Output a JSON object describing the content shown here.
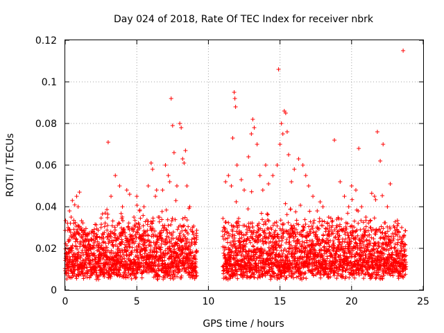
{
  "chart_data": {
    "type": "scatter",
    "title": "Day 024 of 2018, Rate Of TEC Index for receiver nbrk",
    "xlabel": "GPS time / hours",
    "ylabel": "ROTI / TECUs",
    "xlim": [
      0,
      25
    ],
    "ylim": [
      0,
      0.12
    ],
    "xticks": [
      0,
      5,
      10,
      15,
      20,
      25
    ],
    "yticks": [
      0,
      0.02,
      0.04,
      0.06,
      0.08,
      0.1,
      0.12
    ],
    "xtick_labels": [
      "0",
      "5",
      "10",
      "15",
      "20",
      "25"
    ],
    "ytick_labels": [
      "0",
      "0.02",
      "0.04",
      "0.06",
      "0.08",
      "0.1",
      "0.12"
    ],
    "grid": true,
    "marker": "+",
    "color": "#ff0000",
    "series": [
      {
        "name": "ROTI",
        "points": [
          [
            0.1,
            0.012
          ],
          [
            0.2,
            0.03
          ],
          [
            0.3,
            0.038
          ],
          [
            0.5,
            0.043
          ],
          [
            0.6,
            0.032
          ],
          [
            0.8,
            0.045
          ],
          [
            0.9,
            0.04
          ],
          [
            1.0,
            0.047
          ],
          [
            1.2,
            0.025
          ],
          [
            1.5,
            0.018
          ],
          [
            2.0,
            0.02
          ],
          [
            2.5,
            0.03
          ],
          [
            2.8,
            0.037
          ],
          [
            3.0,
            0.071
          ],
          [
            3.2,
            0.045
          ],
          [
            3.5,
            0.055
          ],
          [
            3.8,
            0.05
          ],
          [
            4.0,
            0.04
          ],
          [
            4.3,
            0.048
          ],
          [
            4.5,
            0.046
          ],
          [
            4.8,
            0.035
          ],
          [
            5.0,
            0.045
          ],
          [
            5.2,
            0.038
          ],
          [
            5.5,
            0.04
          ],
          [
            5.8,
            0.05
          ],
          [
            6.0,
            0.061
          ],
          [
            6.1,
            0.058
          ],
          [
            6.3,
            0.045
          ],
          [
            6.5,
            0.035
          ],
          [
            6.8,
            0.048
          ],
          [
            7.0,
            0.06
          ],
          [
            7.2,
            0.055
          ],
          [
            7.3,
            0.052
          ],
          [
            7.4,
            0.092
          ],
          [
            7.5,
            0.079
          ],
          [
            7.6,
            0.066
          ],
          [
            7.8,
            0.05
          ],
          [
            8.0,
            0.08
          ],
          [
            8.1,
            0.078
          ],
          [
            8.2,
            0.063
          ],
          [
            8.3,
            0.061
          ],
          [
            8.4,
            0.067
          ],
          [
            8.5,
            0.05
          ],
          [
            8.7,
            0.04
          ],
          [
            8.9,
            0.03
          ],
          [
            9.0,
            0.025
          ],
          [
            11.2,
            0.052
          ],
          [
            11.4,
            0.055
          ],
          [
            11.6,
            0.05
          ],
          [
            11.7,
            0.073
          ],
          [
            11.8,
            0.095
          ],
          [
            11.85,
            0.092
          ],
          [
            11.9,
            0.088
          ],
          [
            12.0,
            0.06
          ],
          [
            12.3,
            0.053
          ],
          [
            12.5,
            0.048
          ],
          [
            12.8,
            0.064
          ],
          [
            13.0,
            0.075
          ],
          [
            13.1,
            0.082
          ],
          [
            13.2,
            0.078
          ],
          [
            13.4,
            0.07
          ],
          [
            13.6,
            0.055
          ],
          [
            13.8,
            0.048
          ],
          [
            14.0,
            0.06
          ],
          [
            14.2,
            0.051
          ],
          [
            14.5,
            0.055
          ],
          [
            14.8,
            0.06
          ],
          [
            14.9,
            0.106
          ],
          [
            15.0,
            0.07
          ],
          [
            15.1,
            0.08
          ],
          [
            15.2,
            0.075
          ],
          [
            15.3,
            0.086
          ],
          [
            15.4,
            0.085
          ],
          [
            15.5,
            0.076
          ],
          [
            15.6,
            0.065
          ],
          [
            15.8,
            0.052
          ],
          [
            16.0,
            0.058
          ],
          [
            16.3,
            0.063
          ],
          [
            16.6,
            0.06
          ],
          [
            16.8,
            0.055
          ],
          [
            17.0,
            0.05
          ],
          [
            17.3,
            0.045
          ],
          [
            17.6,
            0.038
          ],
          [
            18.0,
            0.04
          ],
          [
            18.4,
            0.035
          ],
          [
            18.8,
            0.072
          ],
          [
            19.2,
            0.052
          ],
          [
            19.5,
            0.045
          ],
          [
            19.8,
            0.04
          ],
          [
            20.0,
            0.05
          ],
          [
            20.3,
            0.048
          ],
          [
            20.5,
            0.068
          ],
          [
            20.7,
            0.04
          ],
          [
            21.0,
            0.035
          ],
          [
            21.3,
            0.03
          ],
          [
            21.6,
            0.045
          ],
          [
            21.8,
            0.076
          ],
          [
            22.0,
            0.062
          ],
          [
            22.2,
            0.07
          ],
          [
            22.5,
            0.04
          ],
          [
            22.7,
            0.051
          ],
          [
            23.0,
            0.03
          ],
          [
            23.3,
            0.028
          ],
          [
            23.5,
            0.03
          ],
          [
            23.6,
            0.115
          ],
          [
            23.7,
            0.022
          ]
        ]
      }
    ]
  }
}
